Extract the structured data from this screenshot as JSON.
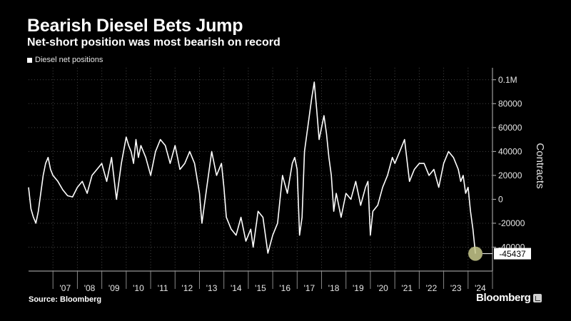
{
  "header": {
    "title": "Bearish Diesel Bets Jump",
    "subtitle": "Net-short position was most bearish on record"
  },
  "legend": {
    "label": "Diesel net positions"
  },
  "footer": {
    "source": "Source: Bloomberg",
    "brand": "Bloomberg"
  },
  "callout": {
    "label": "-45437"
  },
  "colors": {
    "background": "#000000",
    "line": "#ffffff",
    "marker": "#c8c98c"
  },
  "chart_data": {
    "type": "line",
    "series": [
      {
        "name": "Diesel net positions",
        "x": [
          2006.0,
          2006.1,
          2006.2,
          2006.3,
          2006.4,
          2006.5,
          2006.6,
          2006.7,
          2006.8,
          2006.9,
          2007.0,
          2007.2,
          2007.4,
          2007.6,
          2007.8,
          2008.0,
          2008.2,
          2008.4,
          2008.6,
          2008.8,
          2009.0,
          2009.2,
          2009.4,
          2009.6,
          2009.8,
          2010.0,
          2010.1,
          2010.2,
          2010.3,
          2010.4,
          2010.5,
          2010.6,
          2010.8,
          2011.0,
          2011.2,
          2011.4,
          2011.6,
          2011.8,
          2012.0,
          2012.2,
          2012.4,
          2012.6,
          2012.8,
          2013.0,
          2013.1,
          2013.3,
          2013.5,
          2013.7,
          2013.9,
          2014.0,
          2014.1,
          2014.3,
          2014.5,
          2014.7,
          2014.9,
          2015.1,
          2015.2,
          2015.4,
          2015.6,
          2015.8,
          2016.0,
          2016.2,
          2016.4,
          2016.6,
          2016.8,
          2016.9,
          2017.0,
          2017.1,
          2017.2,
          2017.3,
          2017.4,
          2017.5,
          2017.6,
          2017.7,
          2017.8,
          2017.9,
          2018.0,
          2018.1,
          2018.2,
          2018.3,
          2018.4,
          2018.5,
          2018.6,
          2018.8,
          2019.0,
          2019.2,
          2019.4,
          2019.6,
          2019.8,
          2019.9,
          2020.0,
          2020.1,
          2020.3,
          2020.5,
          2020.7,
          2020.9,
          2021.0,
          2021.2,
          2021.4,
          2021.6,
          2021.8,
          2022.0,
          2022.2,
          2022.4,
          2022.6,
          2022.8,
          2023.0,
          2023.2,
          2023.4,
          2023.6,
          2023.7,
          2023.8,
          2023.9,
          2024.0,
          2024.1,
          2024.2,
          2024.3
        ],
        "values": [
          10000,
          -8000,
          -15000,
          -20000,
          -10000,
          5000,
          20000,
          30000,
          35000,
          25000,
          20000,
          15000,
          8000,
          3000,
          2000,
          10000,
          15000,
          5000,
          20000,
          25000,
          30000,
          15000,
          35000,
          0,
          30000,
          52000,
          45000,
          40000,
          30000,
          50000,
          35000,
          45000,
          35000,
          20000,
          40000,
          50000,
          45000,
          30000,
          45000,
          25000,
          30000,
          40000,
          30000,
          5000,
          -20000,
          10000,
          40000,
          20000,
          30000,
          10000,
          -15000,
          -25000,
          -30000,
          -15000,
          -35000,
          -25000,
          -40000,
          -10000,
          -15000,
          -45000,
          -30000,
          -20000,
          20000,
          5000,
          30000,
          35000,
          25000,
          -30000,
          -15000,
          40000,
          55000,
          70000,
          85000,
          98000,
          75000,
          50000,
          60000,
          70000,
          55000,
          35000,
          20000,
          -10000,
          5000,
          -15000,
          5000,
          0,
          15000,
          -5000,
          10000,
          15000,
          -30000,
          -10000,
          -5000,
          10000,
          20000,
          35000,
          30000,
          40000,
          50000,
          15000,
          25000,
          30000,
          30000,
          20000,
          25000,
          10000,
          30000,
          40000,
          35000,
          25000,
          15000,
          20000,
          5000,
          10000,
          -10000,
          -25000,
          -45437
        ]
      }
    ],
    "xlabels": [
      "'07",
      "'08",
      "'09",
      "'10",
      "'11",
      "'12",
      "'13",
      "'14",
      "'15",
      "'16",
      "'17",
      "'18",
      "'19",
      "'20",
      "'21",
      "'22",
      "'23",
      "'24"
    ],
    "xlabel_values": [
      2007.5,
      2008.5,
      2009.5,
      2010.5,
      2011.5,
      2012.5,
      2013.5,
      2014.5,
      2015.5,
      2016.5,
      2017.5,
      2018.5,
      2019.5,
      2020.5,
      2021.5,
      2022.5,
      2023.5,
      2024.5
    ],
    "yticks": [
      -40000,
      -20000,
      0,
      20000,
      40000,
      60000,
      80000,
      100000
    ],
    "ytick_labels": [
      "-40000",
      "-20000",
      "0",
      "20000",
      "40000",
      "60000",
      "80000",
      "0.1M"
    ],
    "ylabel": "Contracts",
    "ylim": [
      -60000,
      110000
    ],
    "xlim": [
      2006.0,
      2025.0
    ],
    "grid": true,
    "legend_position": "top-left",
    "y_axis_side": "right"
  }
}
